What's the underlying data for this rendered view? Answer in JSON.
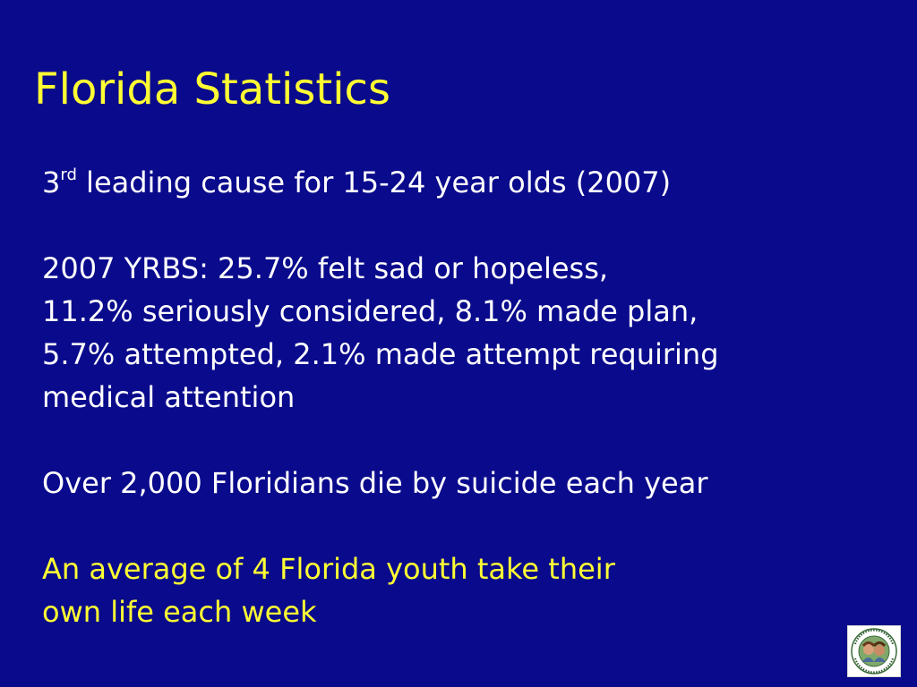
{
  "slide": {
    "title": "Florida Statistics",
    "item1": {
      "number": "3",
      "superscript": "rd",
      "text": " leading cause for 15-24 year olds (2007)"
    },
    "item2": {
      "lines": [
        "2007 YRBS:  25.7% felt sad or hopeless,",
        "11.2% seriously considered, 8.1% made plan,",
        "5.7% attempted, 2.1% made attempt requiring",
        "medical attention"
      ]
    },
    "item3": "Over 2,000 Floridians die by suicide each year",
    "item4": {
      "lines": [
        "An average of 4 Florida youth take their",
        "own life each week"
      ]
    },
    "colors": {
      "background": "#0a0a8c",
      "title": "#ffff33",
      "body": "#ffffff",
      "highlight": "#ffff33"
    },
    "logo": {
      "icon": "foundation-seal-logo"
    }
  }
}
